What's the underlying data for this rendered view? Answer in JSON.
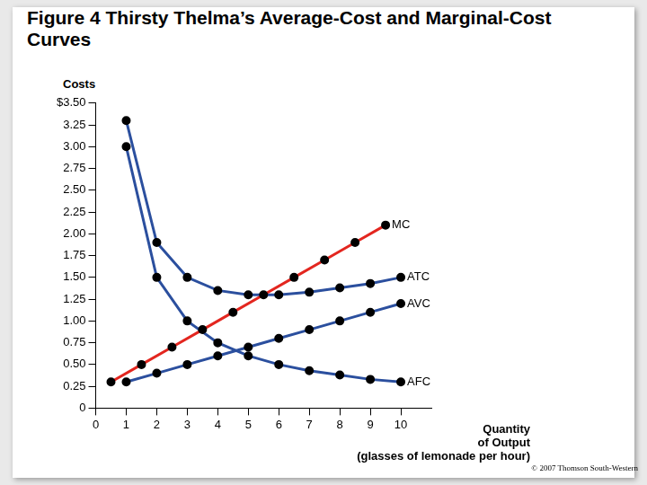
{
  "chart_data": {
    "type": "line",
    "title": "Figure 4 Thirsty Thelma’s Average-Cost and Marginal-Cost Curves",
    "y_label": "Costs",
    "x_label": [
      "Quantity",
      "of Output",
      "(glasses of lemonade per hour)"
    ],
    "credit": "© 2007 Thomson South-Western",
    "xlim": [
      0,
      11
    ],
    "xticks": [
      0,
      1,
      2,
      3,
      4,
      5,
      6,
      7,
      8,
      9,
      10
    ],
    "ylim": [
      0,
      3.5
    ],
    "yticks": [
      0,
      0.25,
      {
        "value": 0.5,
        "label": "0.50"
      },
      0.75,
      {
        "value": 1,
        "label": "1.00"
      },
      1.25,
      {
        "value": 1.5,
        "label": "1.50"
      },
      1.75,
      {
        "value": 2,
        "label": "2.00"
      },
      2.25,
      {
        "value": 2.5,
        "label": "2.50"
      },
      2.75,
      {
        "value": 3,
        "label": "3.00"
      },
      3.25,
      {
        "value": 3.5,
        "label": "$3.50"
      }
    ],
    "grid": false,
    "series": [
      {
        "name": "MC",
        "color": "#e3261f",
        "marker": "circle",
        "x": [
          0.5,
          1.5,
          2.5,
          3.5,
          4.5,
          5.5,
          6.5,
          7.5,
          8.5,
          9.5
        ],
        "values": [
          0.3,
          0.5,
          0.7,
          0.9,
          1.1,
          1.3,
          1.5,
          1.7,
          1.9,
          2.1
        ]
      },
      {
        "name": "ATC",
        "color": "#2b4f9e",
        "marker": "circle",
        "x": [
          1,
          2,
          3,
          4,
          5,
          6,
          7,
          8,
          9,
          10
        ],
        "values": [
          3.3,
          1.9,
          1.5,
          1.35,
          1.3,
          1.3,
          1.33,
          1.38,
          1.43,
          1.5
        ]
      },
      {
        "name": "AVC",
        "color": "#2b4f9e",
        "marker": "circle",
        "x": [
          1,
          2,
          3,
          4,
          5,
          6,
          7,
          8,
          9,
          10
        ],
        "values": [
          0.3,
          0.4,
          0.5,
          0.6,
          0.7,
          0.8,
          0.9,
          1.0,
          1.1,
          1.2
        ]
      },
      {
        "name": "AFC",
        "color": "#2b4f9e",
        "marker": "circle",
        "x": [
          1,
          2,
          3,
          4,
          5,
          6,
          7,
          8,
          9,
          10
        ],
        "values": [
          3.0,
          1.5,
          1.0,
          0.75,
          0.6,
          0.5,
          0.43,
          0.38,
          0.33,
          0.3
        ]
      }
    ]
  }
}
